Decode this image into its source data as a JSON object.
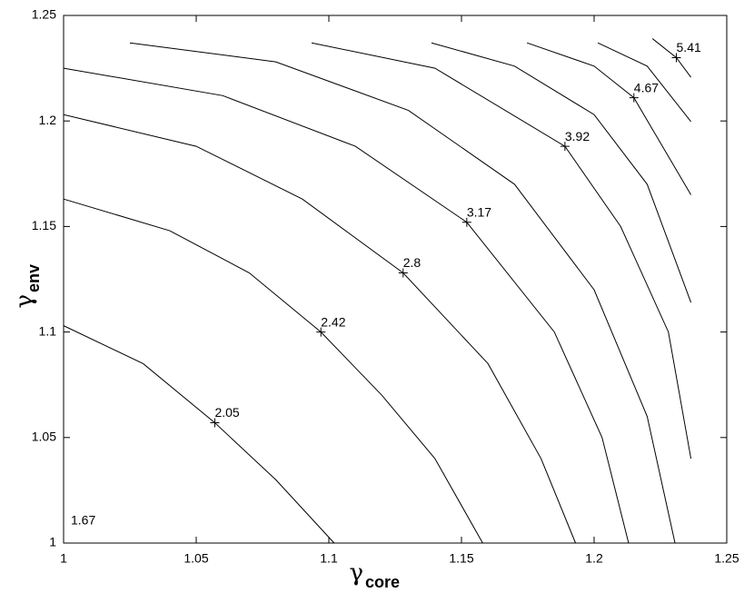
{
  "chart_data": {
    "type": "contour",
    "xlabel": {
      "symbol": "γ",
      "subscript": "core"
    },
    "ylabel": {
      "symbol": "γ",
      "subscript": "env"
    },
    "xlim": [
      1,
      1.25
    ],
    "ylim": [
      1,
      1.25
    ],
    "xticks": [
      1,
      1.05,
      1.1,
      1.15,
      1.2,
      1.25
    ],
    "yticks": [
      1,
      1.05,
      1.1,
      1.15,
      1.2,
      1.25
    ],
    "color": "#000000",
    "contours": [
      {
        "label": "1.67"
      },
      {
        "label": "2.05",
        "marker": [
          1.057,
          1.057
        ],
        "x": [
          1,
          1.03,
          1.057,
          1.08,
          1.102
        ],
        "y": [
          1.103,
          1.085,
          1.057,
          1.03,
          1.0
        ]
      },
      {
        "label": "2.42",
        "marker": [
          1.097,
          1.1
        ],
        "x": [
          1,
          1.04,
          1.07,
          1.097,
          1.12,
          1.14,
          1.158
        ],
        "y": [
          1.163,
          1.148,
          1.128,
          1.1,
          1.07,
          1.04,
          1.0
        ]
      },
      {
        "label": "2.8",
        "marker": [
          1.128,
          1.128
        ],
        "x": [
          1,
          1.05,
          1.09,
          1.128,
          1.16,
          1.18,
          1.193
        ],
        "y": [
          1.203,
          1.188,
          1.163,
          1.128,
          1.085,
          1.04,
          1.0
        ]
      },
      {
        "label": "3.17",
        "marker": [
          1.152,
          1.152
        ],
        "x": [
          1,
          1.06,
          1.11,
          1.152,
          1.185,
          1.203,
          1.213
        ],
        "y": [
          1.225,
          1.212,
          1.188,
          1.152,
          1.1,
          1.05,
          1.0
        ]
      },
      {
        "x": [
          1.025,
          1.08,
          1.13,
          1.17,
          1.2,
          1.22,
          1.2305
        ],
        "y": [
          1.237,
          1.228,
          1.205,
          1.17,
          1.12,
          1.06,
          1.0
        ]
      },
      {
        "label": "3.92",
        "marker": [
          1.189,
          1.188
        ],
        "x": [
          1.0935,
          1.14,
          1.189,
          1.21,
          1.228,
          1.2365
        ],
        "y": [
          1.237,
          1.225,
          1.188,
          1.15,
          1.1,
          1.04
        ]
      },
      {
        "x": [
          1.1387,
          1.17,
          1.2,
          1.22,
          1.2365
        ],
        "y": [
          1.237,
          1.226,
          1.203,
          1.17,
          1.114
        ]
      },
      {
        "label": "4.67",
        "marker": [
          1.215,
          1.211
        ],
        "x": [
          1.1747,
          1.2,
          1.215,
          1.2365
        ],
        "y": [
          1.237,
          1.226,
          1.211,
          1.165
        ]
      },
      {
        "x": [
          1.2014,
          1.22,
          1.2365
        ],
        "y": [
          1.237,
          1.226,
          1.1997
        ]
      },
      {
        "label": "5.41",
        "marker": [
          1.231,
          1.23
        ],
        "x": [
          1.222,
          1.231,
          1.2365
        ],
        "y": [
          1.239,
          1.23,
          1.2207
        ]
      }
    ]
  }
}
